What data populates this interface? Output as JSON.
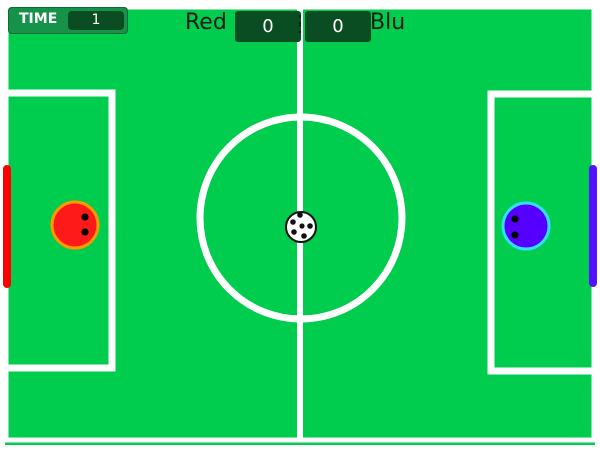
{
  "hud": {
    "time_label": "TIME",
    "time_value": "1"
  },
  "scoreboard": {
    "home_team": "Red",
    "away_team": "Blu",
    "home_score": "0",
    "away_score": "0"
  },
  "colors": {
    "pitch": "#00cc4d",
    "lines": "#ffffff",
    "red_player": "#ff1a1a",
    "red_player_ring": "#ff9900",
    "blue_player": "#5500ff",
    "blue_player_ring": "#33ddff",
    "red_goal": "#ff0000",
    "blue_goal": "#5511ff",
    "ball": "#ffffff"
  }
}
